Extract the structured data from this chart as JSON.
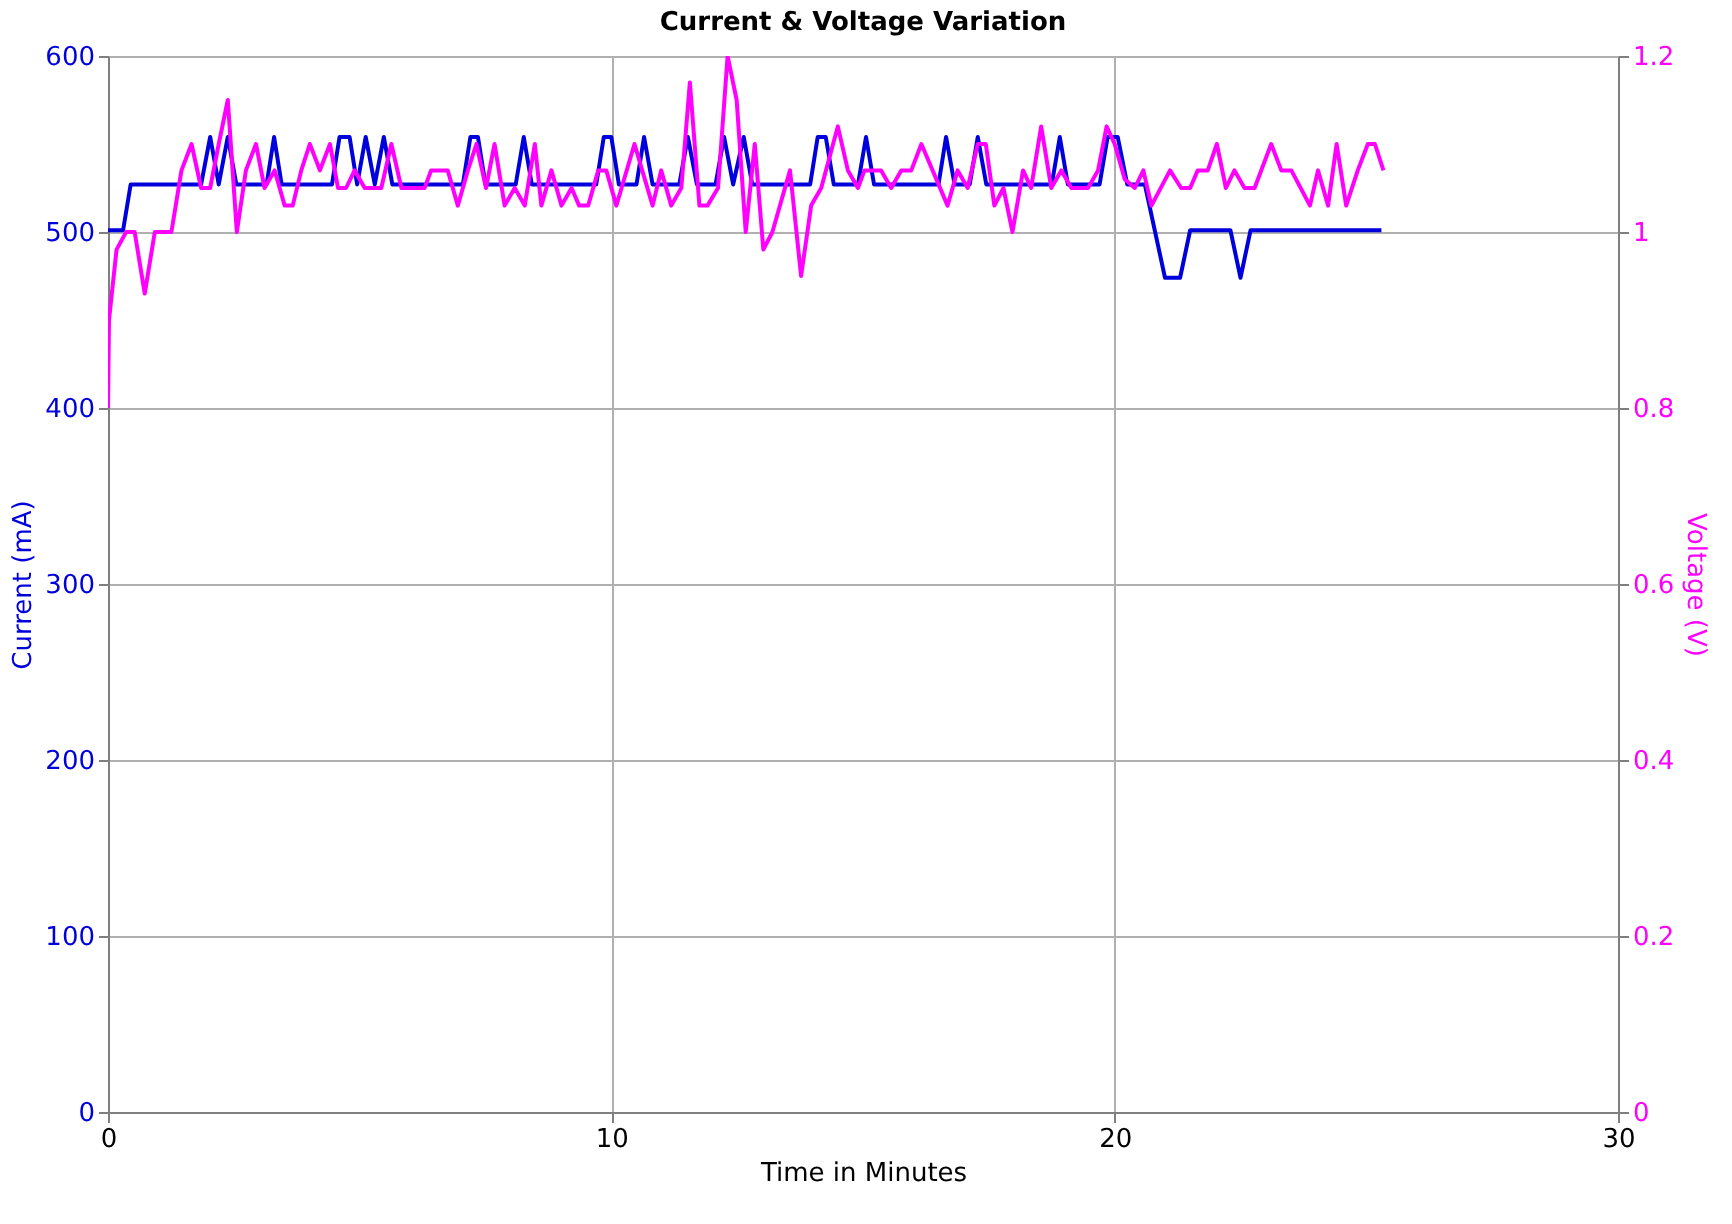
{
  "chart_data": {
    "type": "line",
    "title": "Current & Voltage Variation",
    "xlabel": "Time in Minutes",
    "ylabel": "Current (mA)",
    "y2label": "Voltage (V)",
    "xlim": [
      0,
      30
    ],
    "xticks": [
      0,
      10,
      20,
      30
    ],
    "ylim": [
      0,
      600
    ],
    "yticks": [
      0,
      100,
      200,
      300,
      400,
      500,
      600
    ],
    "y2lim": [
      0,
      1.2
    ],
    "y2ticks": [
      0,
      0.2,
      0.4,
      0.6,
      0.8,
      1,
      1.2
    ],
    "grid": true,
    "legend": false,
    "marker": "none",
    "line_style": "solid",
    "series": [
      {
        "color": "#0000dd",
        "x": [
          0,
          0.3,
          0.45,
          1.85,
          2.03,
          2.2,
          2.38,
          2.55,
          3.15,
          3.3,
          3.45,
          4.45,
          4.6,
          4.8,
          4.95,
          5.12,
          5.3,
          5.48,
          5.65,
          7.05,
          7.2,
          7.35,
          7.5,
          8.1,
          8.26,
          8.42,
          9.7,
          9.85,
          10.0,
          10.15,
          10.5,
          10.65,
          10.82,
          11.35,
          11.52,
          11.7,
          12.07,
          12.24,
          12.42,
          12.63,
          12.8,
          13.95,
          14.1,
          14.26,
          14.42,
          14.9,
          15.06,
          15.22,
          16.5,
          16.65,
          16.82,
          17.12,
          17.28,
          17.45,
          18.75,
          18.91,
          19.07,
          19.7,
          19.86,
          20.06,
          20.25,
          20.6,
          21.0,
          21.3,
          21.5,
          22.3,
          22.5,
          22.7,
          25.3
        ],
        "values": [
          501,
          501,
          527,
          527,
          554,
          527,
          554,
          527,
          527,
          554,
          527,
          527,
          554,
          554,
          527,
          554,
          527,
          554,
          527,
          527,
          554,
          554,
          527,
          527,
          554,
          527,
          527,
          554,
          554,
          527,
          527,
          554,
          527,
          527,
          554,
          527,
          527,
          554,
          527,
          554,
          527,
          527,
          554,
          554,
          527,
          527,
          554,
          527,
          527,
          554,
          527,
          527,
          554,
          527,
          527,
          554,
          527,
          527,
          554,
          554,
          527,
          527,
          474,
          474,
          501,
          501,
          474,
          501,
          501
        ]
      },
      {
        "color": "#ff00ff",
        "axis": "y2",
        "x": [
          0,
          0.02,
          0.17,
          0.36,
          0.53,
          0.73,
          0.93,
          1.26,
          1.46,
          1.66,
          1.85,
          2.03,
          2.2,
          2.38,
          2.56,
          2.74,
          2.94,
          3.11,
          3.31,
          3.51,
          3.67,
          3.84,
          4.01,
          4.21,
          4.41,
          4.57,
          4.73,
          4.9,
          5.1,
          5.43,
          5.63,
          5.83,
          6.29,
          6.42,
          6.75,
          6.95,
          7.15,
          7.32,
          7.51,
          7.68,
          7.88,
          8.08,
          8.28,
          8.48,
          8.61,
          8.81,
          9.01,
          9.21,
          9.36,
          9.54,
          9.74,
          9.9,
          10.1,
          10.46,
          10.82,
          10.99,
          11.19,
          11.39,
          11.56,
          11.75,
          11.91,
          12.12,
          12.31,
          12.49,
          12.67,
          12.85,
          13.02,
          13.2,
          13.55,
          13.77,
          13.97,
          14.17,
          14.5,
          14.7,
          14.9,
          15.03,
          15.36,
          15.56,
          15.76,
          15.96,
          16.16,
          16.68,
          16.88,
          17.08,
          17.28,
          17.44,
          17.61,
          17.79,
          17.97,
          18.18,
          18.34,
          18.54,
          18.74,
          18.94,
          19.14,
          19.47,
          19.67,
          19.84,
          20.0,
          20.2,
          20.4,
          20.57,
          20.73,
          21.1,
          21.32,
          21.5,
          21.65,
          21.85,
          22.03,
          22.21,
          22.38,
          22.58,
          22.78,
          23.11,
          23.31,
          23.51,
          23.88,
          24.04,
          24.24,
          24.41,
          24.6,
          24.83,
          25.03,
          25.17,
          25.34
        ],
        "values": [
          0.8,
          0.9,
          0.98,
          1.0,
          1.0,
          0.93,
          1.0,
          1.0,
          1.07,
          1.1,
          1.05,
          1.05,
          1.1,
          1.15,
          1.0,
          1.07,
          1.1,
          1.05,
          1.07,
          1.03,
          1.03,
          1.07,
          1.1,
          1.07,
          1.1,
          1.05,
          1.05,
          1.07,
          1.05,
          1.05,
          1.1,
          1.05,
          1.05,
          1.07,
          1.07,
          1.03,
          1.07,
          1.1,
          1.05,
          1.1,
          1.03,
          1.05,
          1.03,
          1.1,
          1.03,
          1.07,
          1.03,
          1.05,
          1.03,
          1.03,
          1.07,
          1.07,
          1.03,
          1.1,
          1.03,
          1.07,
          1.03,
          1.05,
          1.17,
          1.03,
          1.03,
          1.05,
          1.2,
          1.15,
          1.0,
          1.1,
          0.98,
          1.0,
          1.07,
          0.95,
          1.03,
          1.05,
          1.12,
          1.07,
          1.05,
          1.07,
          1.07,
          1.05,
          1.07,
          1.07,
          1.1,
          1.03,
          1.07,
          1.05,
          1.1,
          1.1,
          1.03,
          1.05,
          1.0,
          1.07,
          1.05,
          1.12,
          1.05,
          1.07,
          1.05,
          1.05,
          1.07,
          1.12,
          1.1,
          1.06,
          1.05,
          1.07,
          1.03,
          1.07,
          1.05,
          1.05,
          1.07,
          1.07,
          1.1,
          1.05,
          1.07,
          1.05,
          1.05,
          1.1,
          1.07,
          1.07,
          1.03,
          1.07,
          1.03,
          1.1,
          1.03,
          1.07,
          1.1,
          1.1,
          1.07
        ]
      }
    ]
  }
}
